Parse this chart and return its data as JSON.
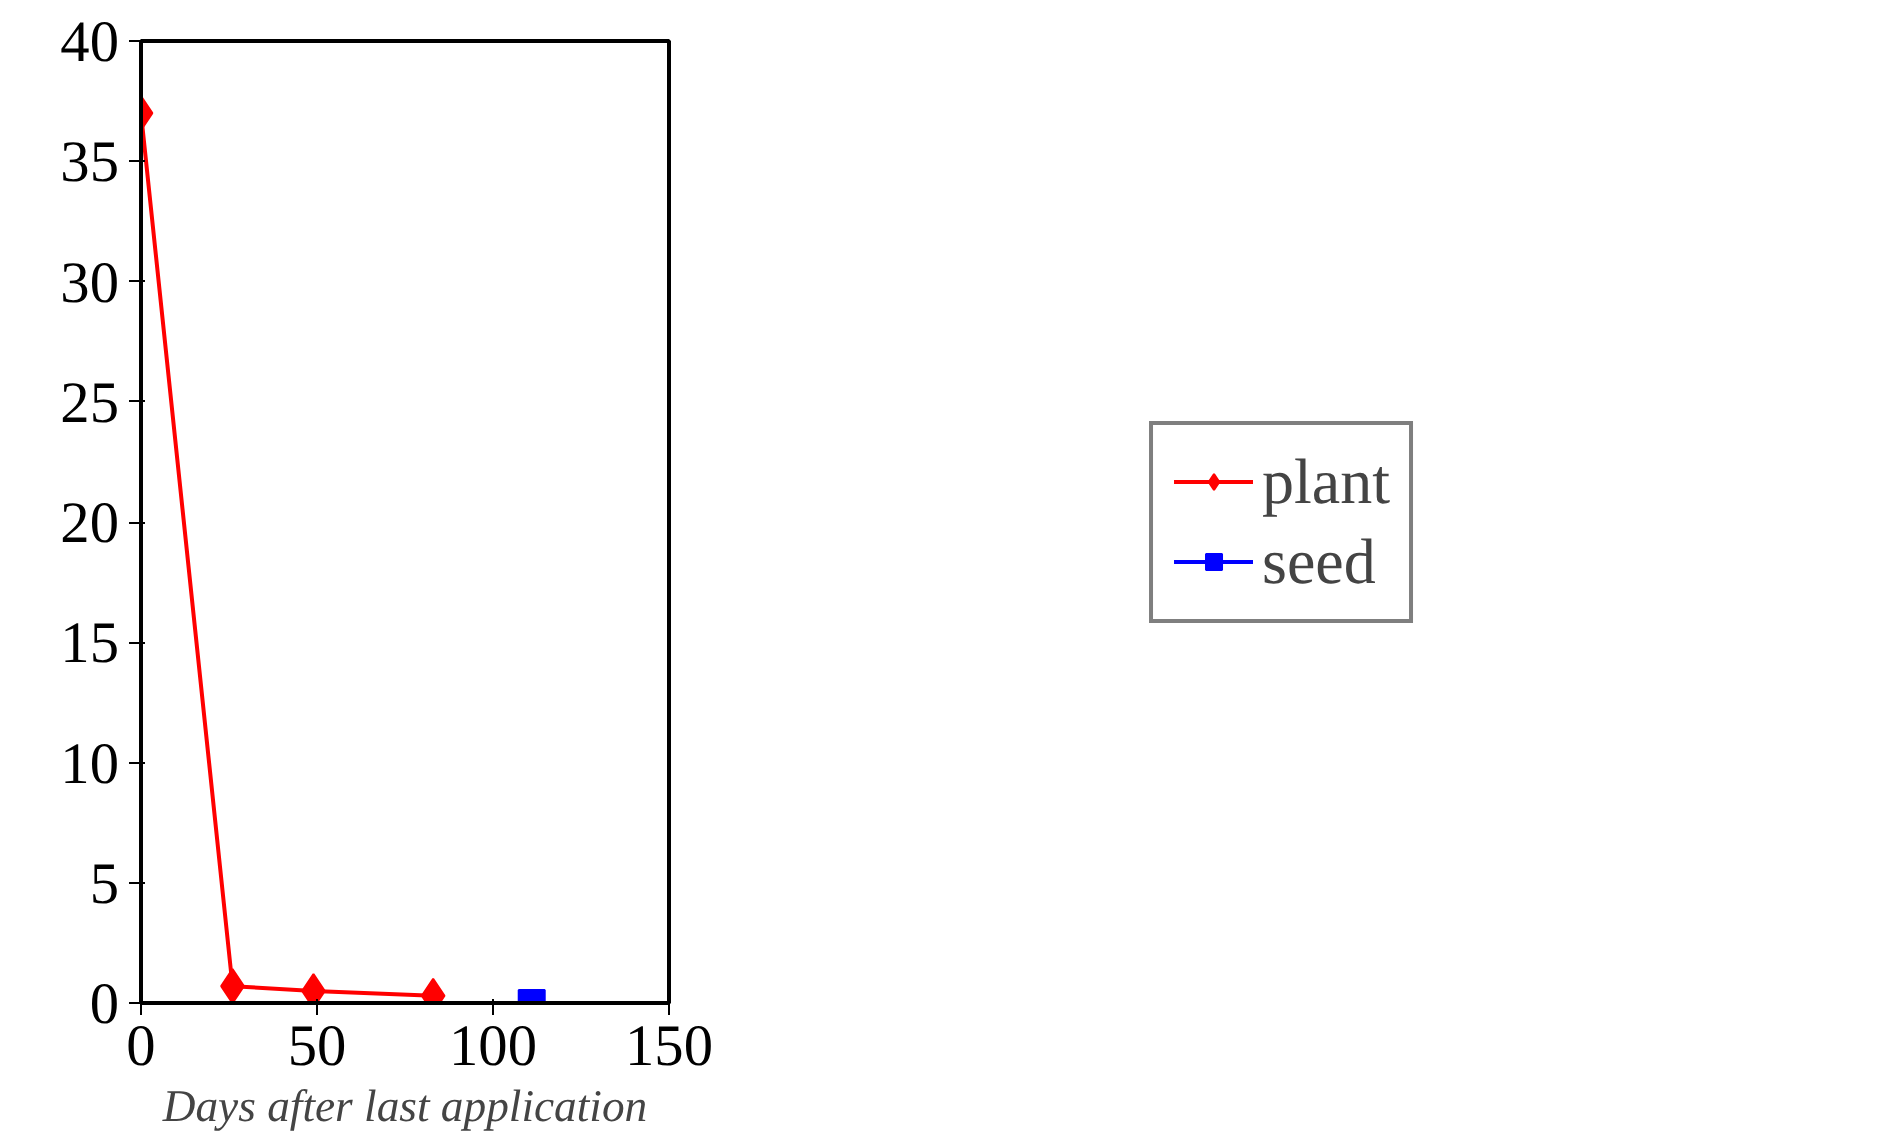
{
  "chart_data": {
    "type": "line",
    "xlabel": "Days after last application",
    "xlim": [
      0,
      150
    ],
    "ylim": [
      0,
      40
    ],
    "xticks": [
      0,
      50,
      100,
      150
    ],
    "yticks": [
      0,
      5,
      10,
      15,
      20,
      25,
      30,
      35,
      40
    ],
    "grid": false,
    "legend": "right",
    "line_style": "solid",
    "series": [
      {
        "name": "plant",
        "color": "#ff0000",
        "marker": "diamond",
        "x": [
          0,
          26,
          49,
          83
        ],
        "values": [
          37,
          0.7,
          0.5,
          0.3
        ]
      },
      {
        "name": "seed",
        "color": "#0000ff",
        "marker": "square",
        "x": [
          111
        ],
        "values": [
          0
        ]
      }
    ]
  }
}
